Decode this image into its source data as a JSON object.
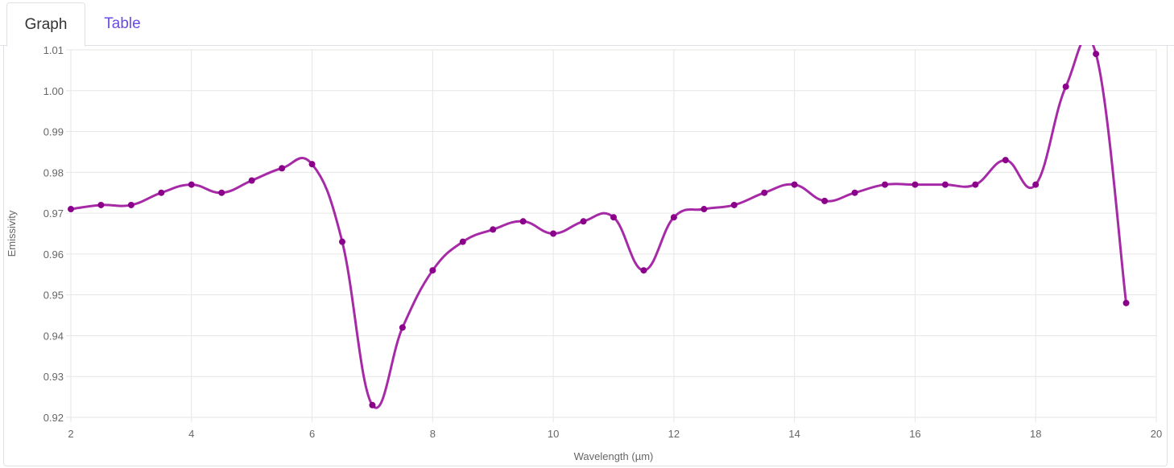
{
  "tabs": [
    {
      "label": "Graph",
      "active": true
    },
    {
      "label": "Table",
      "active": false
    }
  ],
  "colors": {
    "series": "#a62aa6",
    "point": "#8b008b",
    "grid": "#e6e6e6",
    "tab_link": "#6a4ce6"
  },
  "chart_data": {
    "type": "line",
    "xlabel": "Wavelength (µm)",
    "ylabel": "Emissivity",
    "xlim": [
      2,
      20
    ],
    "ylim": [
      0.92,
      1.01
    ],
    "x_ticks": [
      "2",
      "4",
      "6",
      "8",
      "10",
      "12",
      "14",
      "16",
      "18",
      "20"
    ],
    "y_ticks": [
      "0.92",
      "0.93",
      "0.94",
      "0.95",
      "0.96",
      "0.97",
      "0.98",
      "0.99",
      "1.00",
      "1.01"
    ],
    "grid": true,
    "smooth": true,
    "series": [
      {
        "x": [
          2,
          2.5,
          3,
          3.5,
          4,
          4.5,
          5,
          5.5,
          6,
          6.5,
          7,
          7.5,
          8,
          8.5,
          9,
          9.5,
          10,
          10.5,
          11,
          11.5,
          12,
          12.5,
          13,
          13.5,
          14,
          14.5,
          15,
          15.5,
          16,
          16.5,
          17,
          17.5,
          18,
          18.5,
          19,
          19.5
        ],
        "y": [
          0.971,
          0.972,
          0.972,
          0.975,
          0.977,
          0.975,
          0.978,
          0.981,
          0.982,
          0.963,
          0.923,
          0.942,
          0.956,
          0.963,
          0.966,
          0.968,
          0.965,
          0.968,
          0.969,
          0.956,
          0.969,
          0.971,
          0.972,
          0.975,
          0.977,
          0.973,
          0.975,
          0.977,
          0.977,
          0.977,
          0.977,
          0.983,
          0.977,
          1.001,
          1.009,
          0.948
        ]
      }
    ]
  }
}
